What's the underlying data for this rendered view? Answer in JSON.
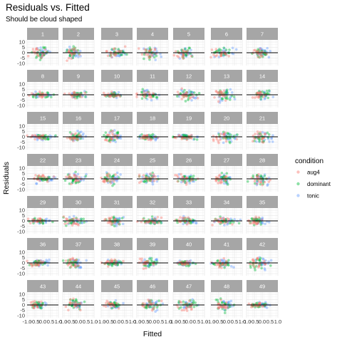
{
  "chart_data": {
    "type": "scatter",
    "title": "Residuals vs. Fitted",
    "subtitle": "Should be cloud shaped",
    "xlabel": "Fitted",
    "ylabel": "Residuals",
    "facets": [
      "1",
      "2",
      "3",
      "4",
      "5",
      "6",
      "7",
      "8",
      "9",
      "10",
      "11",
      "12",
      "13",
      "14",
      "15",
      "16",
      "17",
      "18",
      "19",
      "20",
      "21",
      "22",
      "23",
      "24",
      "25",
      "26",
      "27",
      "28",
      "29",
      "30",
      "31",
      "32",
      "33",
      "34",
      "35",
      "36",
      "37",
      "38",
      "39",
      "40",
      "41",
      "42",
      "43",
      "44",
      "45",
      "46",
      "47",
      "48",
      "49"
    ],
    "facet_ncol": 7,
    "x_ticks": [
      "-1.0",
      "-0.5",
      "0.0",
      "0.5",
      "1.0"
    ],
    "y_ticks": [
      10,
      5,
      0,
      -5,
      -10
    ],
    "xlim": [
      -1.0,
      1.0
    ],
    "ylim": [
      -12,
      12
    ],
    "reference_line_y": 0,
    "grid": true,
    "legend": {
      "title": "condition",
      "position": "right",
      "entries": [
        {
          "name": "aug4",
          "color": "#F8766D"
        },
        {
          "name": "dominant",
          "color": "#00BA38"
        },
        {
          "name": "tonic",
          "color": "#619CFF"
        }
      ]
    },
    "series": [
      {
        "name": "aug4",
        "color": "#F8766D"
      },
      {
        "name": "dominant",
        "color": "#00BA38"
      },
      {
        "name": "tonic",
        "color": "#619CFF"
      }
    ]
  }
}
